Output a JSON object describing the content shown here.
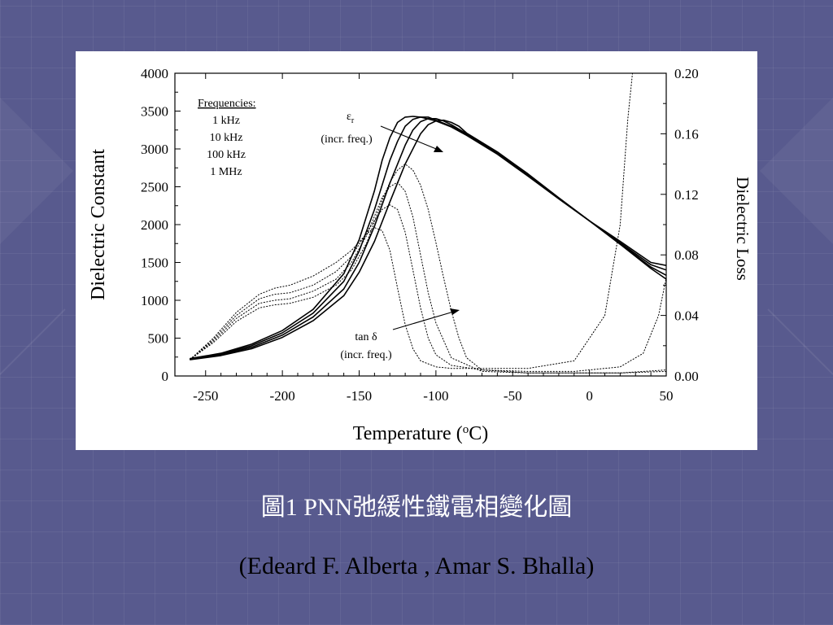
{
  "slide": {
    "caption_title": "圖1 PNN弛緩性鐵電相變化圖",
    "caption_authors": "(Edeard F. Alberta , Amar S. Bhalla)"
  },
  "colors": {
    "slide_background": "#585a8e",
    "figure_background": "#ffffff",
    "caption_title": "#ffffff",
    "caption_authors": "#000000"
  },
  "chart_data": {
    "type": "line",
    "xlabel": "Temperature (oC)",
    "ylabel_left": "Dielectric Constant",
    "ylabel_right": "Dielectric Loss",
    "xlim": [
      -270,
      50
    ],
    "ylim_left": [
      0,
      4000
    ],
    "ylim_right": [
      0.0,
      0.2
    ],
    "x_ticks": [
      -250,
      -200,
      -150,
      -100,
      -50,
      0,
      50
    ],
    "y_left_ticks": [
      0,
      500,
      1000,
      1500,
      2000,
      2500,
      3000,
      3500,
      4000
    ],
    "y_right_ticks": [
      "0.00",
      "0.04",
      "0.08",
      "0.12",
      "0.16",
      "0.20"
    ],
    "grid": false,
    "legend": {
      "title": "Frequencies:",
      "entries": [
        "1 kHz",
        "10 kHz",
        "100 kHz",
        "1 MHz"
      ],
      "placement": "top-left"
    },
    "annotations": [
      {
        "text": "ε",
        "sub": "r",
        "note": "(incr. freq.)"
      },
      {
        "text": "tan δ",
        "note": "(incr. freq.)"
      }
    ],
    "series": [
      {
        "group": "dielectric_constant",
        "axis": "left",
        "style": "solid",
        "x": [
          -260,
          -240,
          -220,
          -200,
          -180,
          -160,
          -150,
          -140,
          -135,
          -130,
          -125,
          -120,
          -115,
          -110,
          -100,
          -90,
          -80,
          -60,
          -40,
          -20,
          0,
          20,
          40,
          50
        ],
        "y": [
          230,
          300,
          420,
          600,
          880,
          1350,
          1800,
          2450,
          2850,
          3150,
          3350,
          3420,
          3430,
          3420,
          3370,
          3290,
          3180,
          2930,
          2640,
          2340,
          2050,
          1780,
          1500,
          1460
        ]
      },
      {
        "group": "dielectric_constant",
        "axis": "left",
        "style": "solid",
        "x": [
          -260,
          -240,
          -220,
          -200,
          -180,
          -160,
          -150,
          -140,
          -130,
          -125,
          -120,
          -115,
          -110,
          -105,
          -100,
          -90,
          -80,
          -60,
          -40,
          -20,
          0,
          20,
          40,
          50
        ],
        "y": [
          225,
          290,
          400,
          570,
          830,
          1250,
          1650,
          2200,
          2850,
          3100,
          3300,
          3390,
          3420,
          3420,
          3380,
          3300,
          3190,
          2940,
          2650,
          2345,
          2050,
          1760,
          1470,
          1400
        ]
      },
      {
        "group": "dielectric_constant",
        "axis": "left",
        "style": "solid",
        "x": [
          -260,
          -240,
          -220,
          -200,
          -180,
          -160,
          -150,
          -140,
          -130,
          -120,
          -115,
          -110,
          -105,
          -100,
          -95,
          -90,
          -80,
          -60,
          -40,
          -20,
          0,
          20,
          40,
          50
        ],
        "y": [
          220,
          280,
          380,
          540,
          780,
          1150,
          1500,
          1980,
          2550,
          3050,
          3250,
          3360,
          3400,
          3400,
          3370,
          3320,
          3200,
          2950,
          2660,
          2350,
          2050,
          1750,
          1440,
          1330
        ]
      },
      {
        "group": "dielectric_constant",
        "axis": "left",
        "style": "solid",
        "x": [
          -260,
          -240,
          -220,
          -200,
          -180,
          -160,
          -150,
          -140,
          -130,
          -120,
          -110,
          -105,
          -100,
          -95,
          -90,
          -85,
          -80,
          -60,
          -40,
          -20,
          0,
          20,
          40,
          50
        ],
        "y": [
          215,
          270,
          360,
          510,
          730,
          1060,
          1370,
          1780,
          2300,
          2800,
          3200,
          3320,
          3370,
          3380,
          3350,
          3300,
          3210,
          2960,
          2670,
          2355,
          2050,
          1740,
          1420,
          1280
        ]
      },
      {
        "group": "tan_delta",
        "axis": "right",
        "style": "dotted",
        "x": [
          -260,
          -245,
          -230,
          -215,
          -205,
          -195,
          -180,
          -165,
          -155,
          -145,
          -140,
          -135,
          -130,
          -125,
          -120,
          -115,
          -110,
          -100,
          -90,
          -70,
          -40,
          -10,
          10,
          20,
          25,
          28
        ],
        "y": [
          0.011,
          0.025,
          0.042,
          0.054,
          0.058,
          0.06,
          0.066,
          0.075,
          0.083,
          0.094,
          0.098,
          0.096,
          0.083,
          0.058,
          0.034,
          0.018,
          0.01,
          0.006,
          0.005,
          0.005,
          0.005,
          0.01,
          0.04,
          0.1,
          0.17,
          0.2
        ]
      },
      {
        "group": "tan_delta",
        "axis": "right",
        "style": "dotted",
        "x": [
          -260,
          -245,
          -230,
          -215,
          -205,
          -195,
          -180,
          -165,
          -155,
          -145,
          -135,
          -130,
          -125,
          -120,
          -115,
          -110,
          -105,
          -100,
          -90,
          -70,
          -40,
          -10,
          20,
          35,
          45,
          50
        ],
        "y": [
          0.011,
          0.024,
          0.04,
          0.051,
          0.054,
          0.055,
          0.06,
          0.069,
          0.079,
          0.095,
          0.11,
          0.113,
          0.11,
          0.095,
          0.07,
          0.045,
          0.025,
          0.014,
          0.007,
          0.004,
          0.003,
          0.003,
          0.006,
          0.015,
          0.04,
          0.065
        ]
      },
      {
        "group": "tan_delta",
        "axis": "right",
        "style": "dotted",
        "x": [
          -260,
          -245,
          -230,
          -215,
          -205,
          -195,
          -180,
          -165,
          -155,
          -145,
          -135,
          -130,
          -125,
          -120,
          -115,
          -110,
          -105,
          -100,
          -90,
          -70,
          -40,
          -10,
          20,
          50
        ],
        "y": [
          0.011,
          0.023,
          0.038,
          0.048,
          0.05,
          0.051,
          0.056,
          0.064,
          0.075,
          0.093,
          0.118,
          0.125,
          0.128,
          0.122,
          0.105,
          0.08,
          0.055,
          0.035,
          0.012,
          0.003,
          0.002,
          0.002,
          0.002,
          0.004
        ]
      },
      {
        "group": "tan_delta",
        "axis": "right",
        "style": "dotted",
        "x": [
          -260,
          -245,
          -230,
          -215,
          -205,
          -195,
          -180,
          -165,
          -155,
          -145,
          -135,
          -130,
          -125,
          -120,
          -115,
          -110,
          -105,
          -100,
          -95,
          -90,
          -85,
          -80,
          -70,
          -40,
          -10,
          20,
          50
        ],
        "y": [
          0.011,
          0.022,
          0.036,
          0.045,
          0.047,
          0.048,
          0.052,
          0.06,
          0.07,
          0.088,
          0.116,
          0.128,
          0.136,
          0.14,
          0.136,
          0.126,
          0.11,
          0.088,
          0.065,
          0.043,
          0.025,
          0.012,
          0.004,
          0.002,
          0.002,
          0.002,
          0.003
        ]
      }
    ]
  }
}
